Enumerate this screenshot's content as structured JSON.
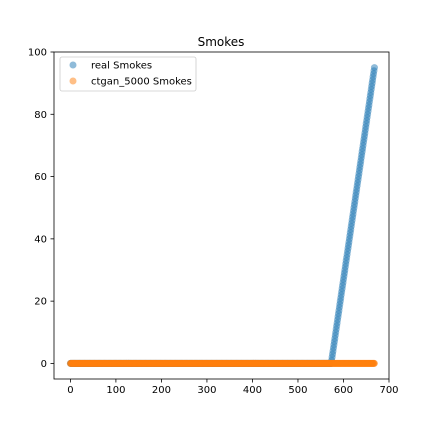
{
  "chart_data": {
    "type": "scatter",
    "title": "Smokes",
    "xlabel": "",
    "ylabel": "",
    "xlim": [
      -36,
      700
    ],
    "ylim": [
      -5,
      100
    ],
    "xticks": [
      0,
      100,
      200,
      300,
      400,
      500,
      600,
      700
    ],
    "yticks": [
      0,
      20,
      40,
      60,
      80,
      100
    ],
    "grid": false,
    "legend_position": "top-left",
    "series": [
      {
        "name": "real Smokes",
        "color": "#1f77b4",
        "alpha": 0.5,
        "segments": [
          {
            "x_start": 0,
            "x_end": 573,
            "y_start": 0,
            "y_end": 0
          },
          {
            "x_start": 573,
            "x_end": 668,
            "y_start": 0,
            "y_end": 95
          }
        ]
      },
      {
        "name": "ctgan_5000 Smokes",
        "color": "#ff7f0e",
        "alpha": 0.5,
        "segments": [
          {
            "x_start": 0,
            "x_end": 668,
            "y_start": 0,
            "y_end": 0
          }
        ]
      }
    ]
  }
}
